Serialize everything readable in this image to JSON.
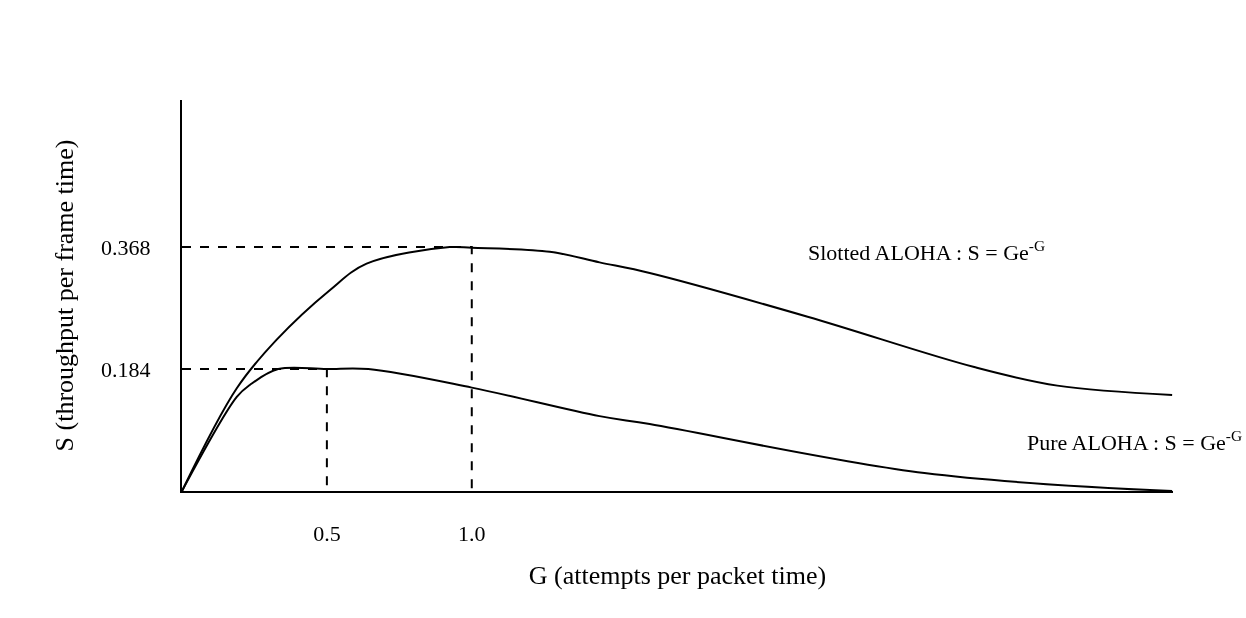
{
  "chart_data": {
    "type": "line",
    "xlabel": "G (attempts per packet time)",
    "ylabel": "S (throughput per frame time)",
    "xlim": [
      0,
      3.42
    ],
    "ylim": [
      0,
      0.59
    ],
    "xticks": [
      0.5,
      {
        "value": 1.0,
        "label": "1.0"
      }
    ],
    "yticks": [
      0.184,
      0.368
    ],
    "legend": false,
    "marker": "none",
    "series": [
      {
        "name": "Slotted ALOHA : S = Ge$^{-G}$",
        "color": "#000000",
        "x": [
          0,
          0.189,
          0.326,
          0.51,
          0.637,
          0.924,
          1.0,
          1.269,
          1.441,
          1.614,
          2.159,
          2.734,
          3.021,
          3.417
        ],
        "values": [
          0,
          0.155,
          0.228,
          0.303,
          0.343,
          0.368,
          0.367,
          0.361,
          0.345,
          0.329,
          0.263,
          0.187,
          0.159,
          0.145
        ]
      },
      {
        "name": "Pure ALOHA : S = Ge$^{-G}$",
        "color": "#000000",
        "x": [
          0,
          0.189,
          0.234,
          0.332,
          0.5,
          0.643,
          1.0,
          1.441,
          1.614,
          2.562,
          3.417
        ],
        "values": [
          0,
          0.142,
          0.16,
          0.184,
          0.184,
          0.184,
          0.156,
          0.113,
          0.101,
          0.027,
          0
        ]
      },
      {
        "color": "#000000",
        "line_style": "dashed",
        "x": [
          0,
          1.0,
          1.0
        ],
        "values": [
          0.368,
          0.368,
          0
        ]
      },
      {
        "color": "#000000",
        "line_style": "dashed",
        "x": [
          0,
          0.5,
          0.5
        ],
        "values": [
          0.184,
          0.184,
          0
        ]
      }
    ]
  }
}
